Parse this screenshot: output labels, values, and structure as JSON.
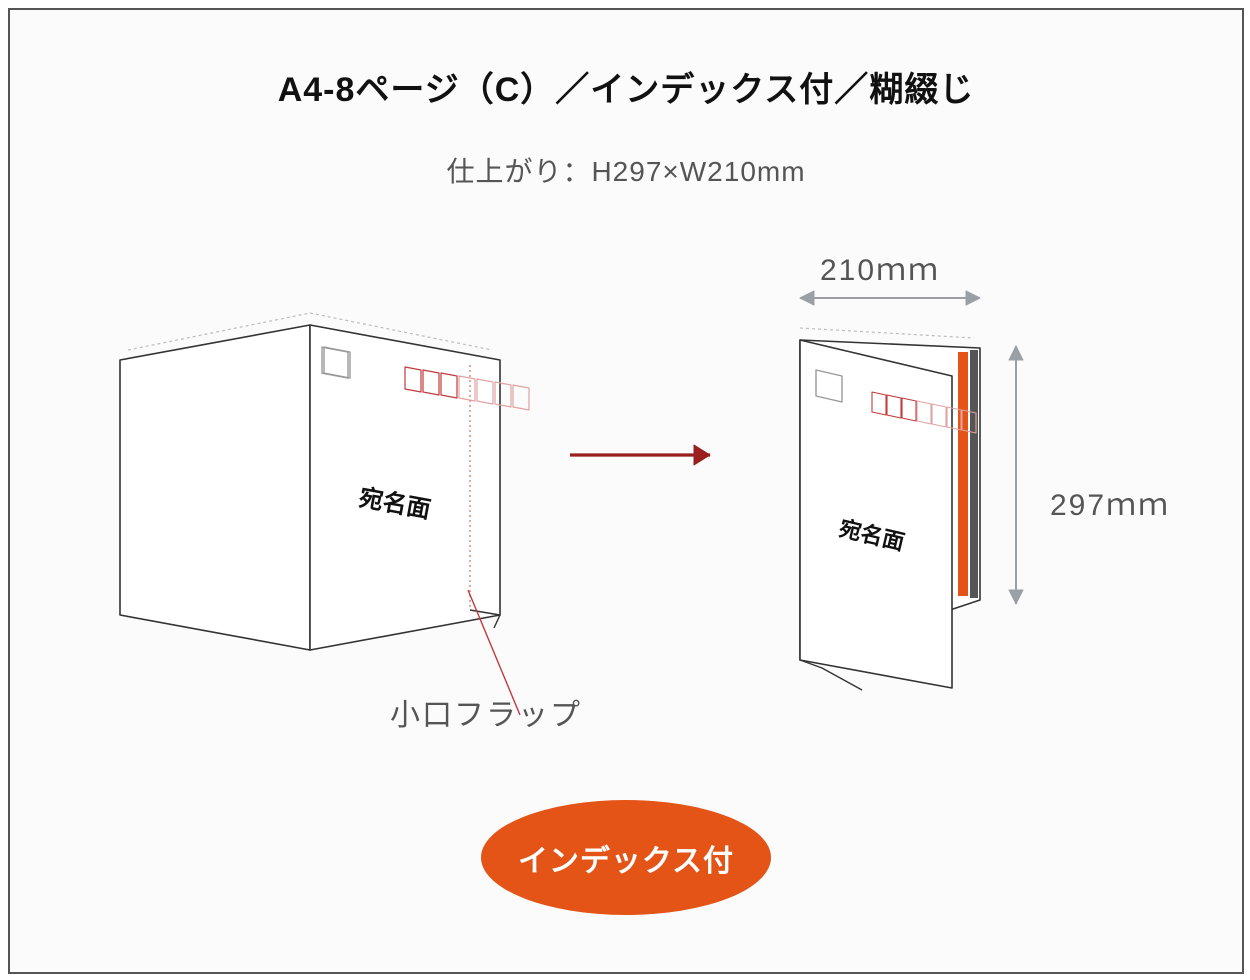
{
  "title": "A4-8ページ（C）／インデックス付／糊綴じ",
  "subtitle": "仕上がり：H297×W210mm",
  "labels": {
    "address_face": "宛名面",
    "flap": "小口フラップ",
    "width": "210ｍｍ",
    "height": "297ｍｍ"
  },
  "badge": {
    "text": "インデックス付",
    "bg": "#e45417",
    "fg": "#ffffff"
  },
  "colors": {
    "frame": "#555555",
    "bg": "#fbfbfb",
    "line": "#333333",
    "line_light": "#999999",
    "dotted": "#bdbdbd",
    "flap_dotted": "#d46a6a",
    "arrow": "#9a1f1f",
    "flap_line": "#c23a3a",
    "dim": "#9aa0a4",
    "postal": "#c23a3a",
    "index_orange": "#e45417",
    "index_gray": "#555555",
    "text_dark": "#111111",
    "text_mid": "#555555"
  },
  "dims": {
    "finished_h_mm": 297,
    "finished_w_mm": 210
  }
}
